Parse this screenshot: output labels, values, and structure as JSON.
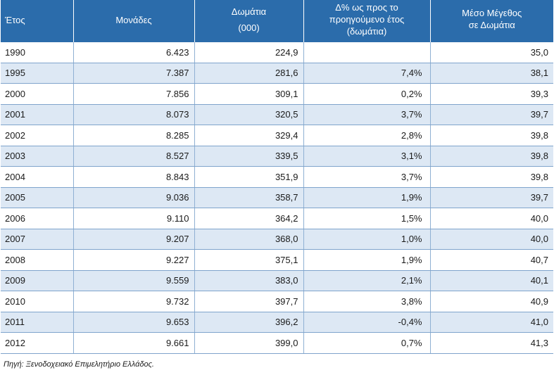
{
  "table": {
    "headers": {
      "year": "Έτος",
      "units": "Μονάδες",
      "rooms_line1": "Δωμάτια",
      "rooms_line2": "(000)",
      "change_line1": "Δ% ως προς το",
      "change_line2": "προηγούμενο έτος",
      "change_line3": "(δωμάτια)",
      "avg_line1": "Μέσο Μέγεθος",
      "avg_line2": "σε Δωμάτια"
    },
    "rows": [
      {
        "year": "1990",
        "units": "6.423",
        "rooms": "224,9",
        "change": "",
        "avg": "35,0"
      },
      {
        "year": "1995",
        "units": "7.387",
        "rooms": "281,6",
        "change": "7,4%",
        "avg": "38,1"
      },
      {
        "year": "2000",
        "units": "7.856",
        "rooms": "309,1",
        "change": "0,2%",
        "avg": "39,3"
      },
      {
        "year": "2001",
        "units": "8.073",
        "rooms": "320,5",
        "change": "3,7%",
        "avg": "39,7"
      },
      {
        "year": "2002",
        "units": "8.285",
        "rooms": "329,4",
        "change": "2,8%",
        "avg": "39,8"
      },
      {
        "year": "2003",
        "units": "8.527",
        "rooms": "339,5",
        "change": "3,1%",
        "avg": "39,8"
      },
      {
        "year": "2004",
        "units": "8.843",
        "rooms": "351,9",
        "change": "3,7%",
        "avg": "39,8"
      },
      {
        "year": "2005",
        "units": "9.036",
        "rooms": "358,7",
        "change": "1,9%",
        "avg": "39,7"
      },
      {
        "year": "2006",
        "units": "9.110",
        "rooms": "364,2",
        "change": "1,5%",
        "avg": "40,0"
      },
      {
        "year": "2007",
        "units": "9.207",
        "rooms": "368,0",
        "change": "1,0%",
        "avg": "40,0"
      },
      {
        "year": "2008",
        "units": "9.227",
        "rooms": "375,1",
        "change": "1,9%",
        "avg": "40,7"
      },
      {
        "year": "2009",
        "units": "9.559",
        "rooms": "383,0",
        "change": "2,1%",
        "avg": "40,1"
      },
      {
        "year": "2010",
        "units": "9.732",
        "rooms": "397,7",
        "change": "3,8%",
        "avg": "40,9"
      },
      {
        "year": "2011",
        "units": "9.653",
        "rooms": "396,2",
        "change": "-0,4%",
        "avg": "41,0"
      },
      {
        "year": "2012",
        "units": "9.661",
        "rooms": "399,0",
        "change": "0,7%",
        "avg": "41,3"
      }
    ]
  },
  "source": "Πηγή: Ξενοδοχειακό Επιμελητήριο Ελλάδος.",
  "colors": {
    "header_bg": "#2b6cab",
    "stripe_bg": "#dde8f4",
    "rule": "#7fa4cc"
  }
}
